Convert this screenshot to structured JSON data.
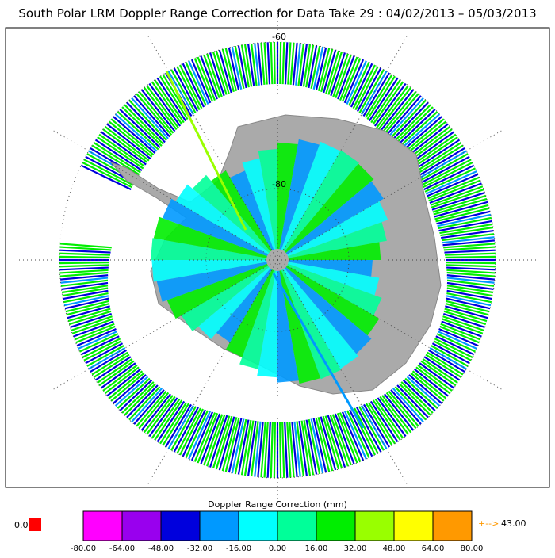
{
  "title": "South Polar LRM Doppler Range Correction for Data Take 29 : 04/02/2013 – 05/03/2013",
  "map": {
    "lat_labels": [
      "-60",
      "-80"
    ]
  },
  "colorbar": {
    "title": "Doppler Range Correction (mm)",
    "colors": [
      "#ff00ff",
      "#9900ee",
      "#0000dd",
      "#0099ff",
      "#00ffff",
      "#00ff99",
      "#00ee00",
      "#99ff00",
      "#ffff00",
      "#ff9900"
    ],
    "ticks": [
      {
        "value": -80,
        "label": "-80.00"
      },
      {
        "value": -64,
        "label": "-64.00"
      },
      {
        "value": -48,
        "label": "-48.00"
      },
      {
        "value": -32,
        "label": "-32.00"
      },
      {
        "value": -16,
        "label": "-16.00"
      },
      {
        "value": 0,
        "label": "0.00"
      },
      {
        "value": 16,
        "label": "16.00"
      },
      {
        "value": 32,
        "label": "32.00"
      },
      {
        "value": 48,
        "label": "48.00"
      },
      {
        "value": 64,
        "label": "64.00"
      },
      {
        "value": 80,
        "label": "80.00"
      }
    ],
    "below_label": "0.0",
    "above_label": "43.00",
    "above_arrow": "+-->"
  }
}
